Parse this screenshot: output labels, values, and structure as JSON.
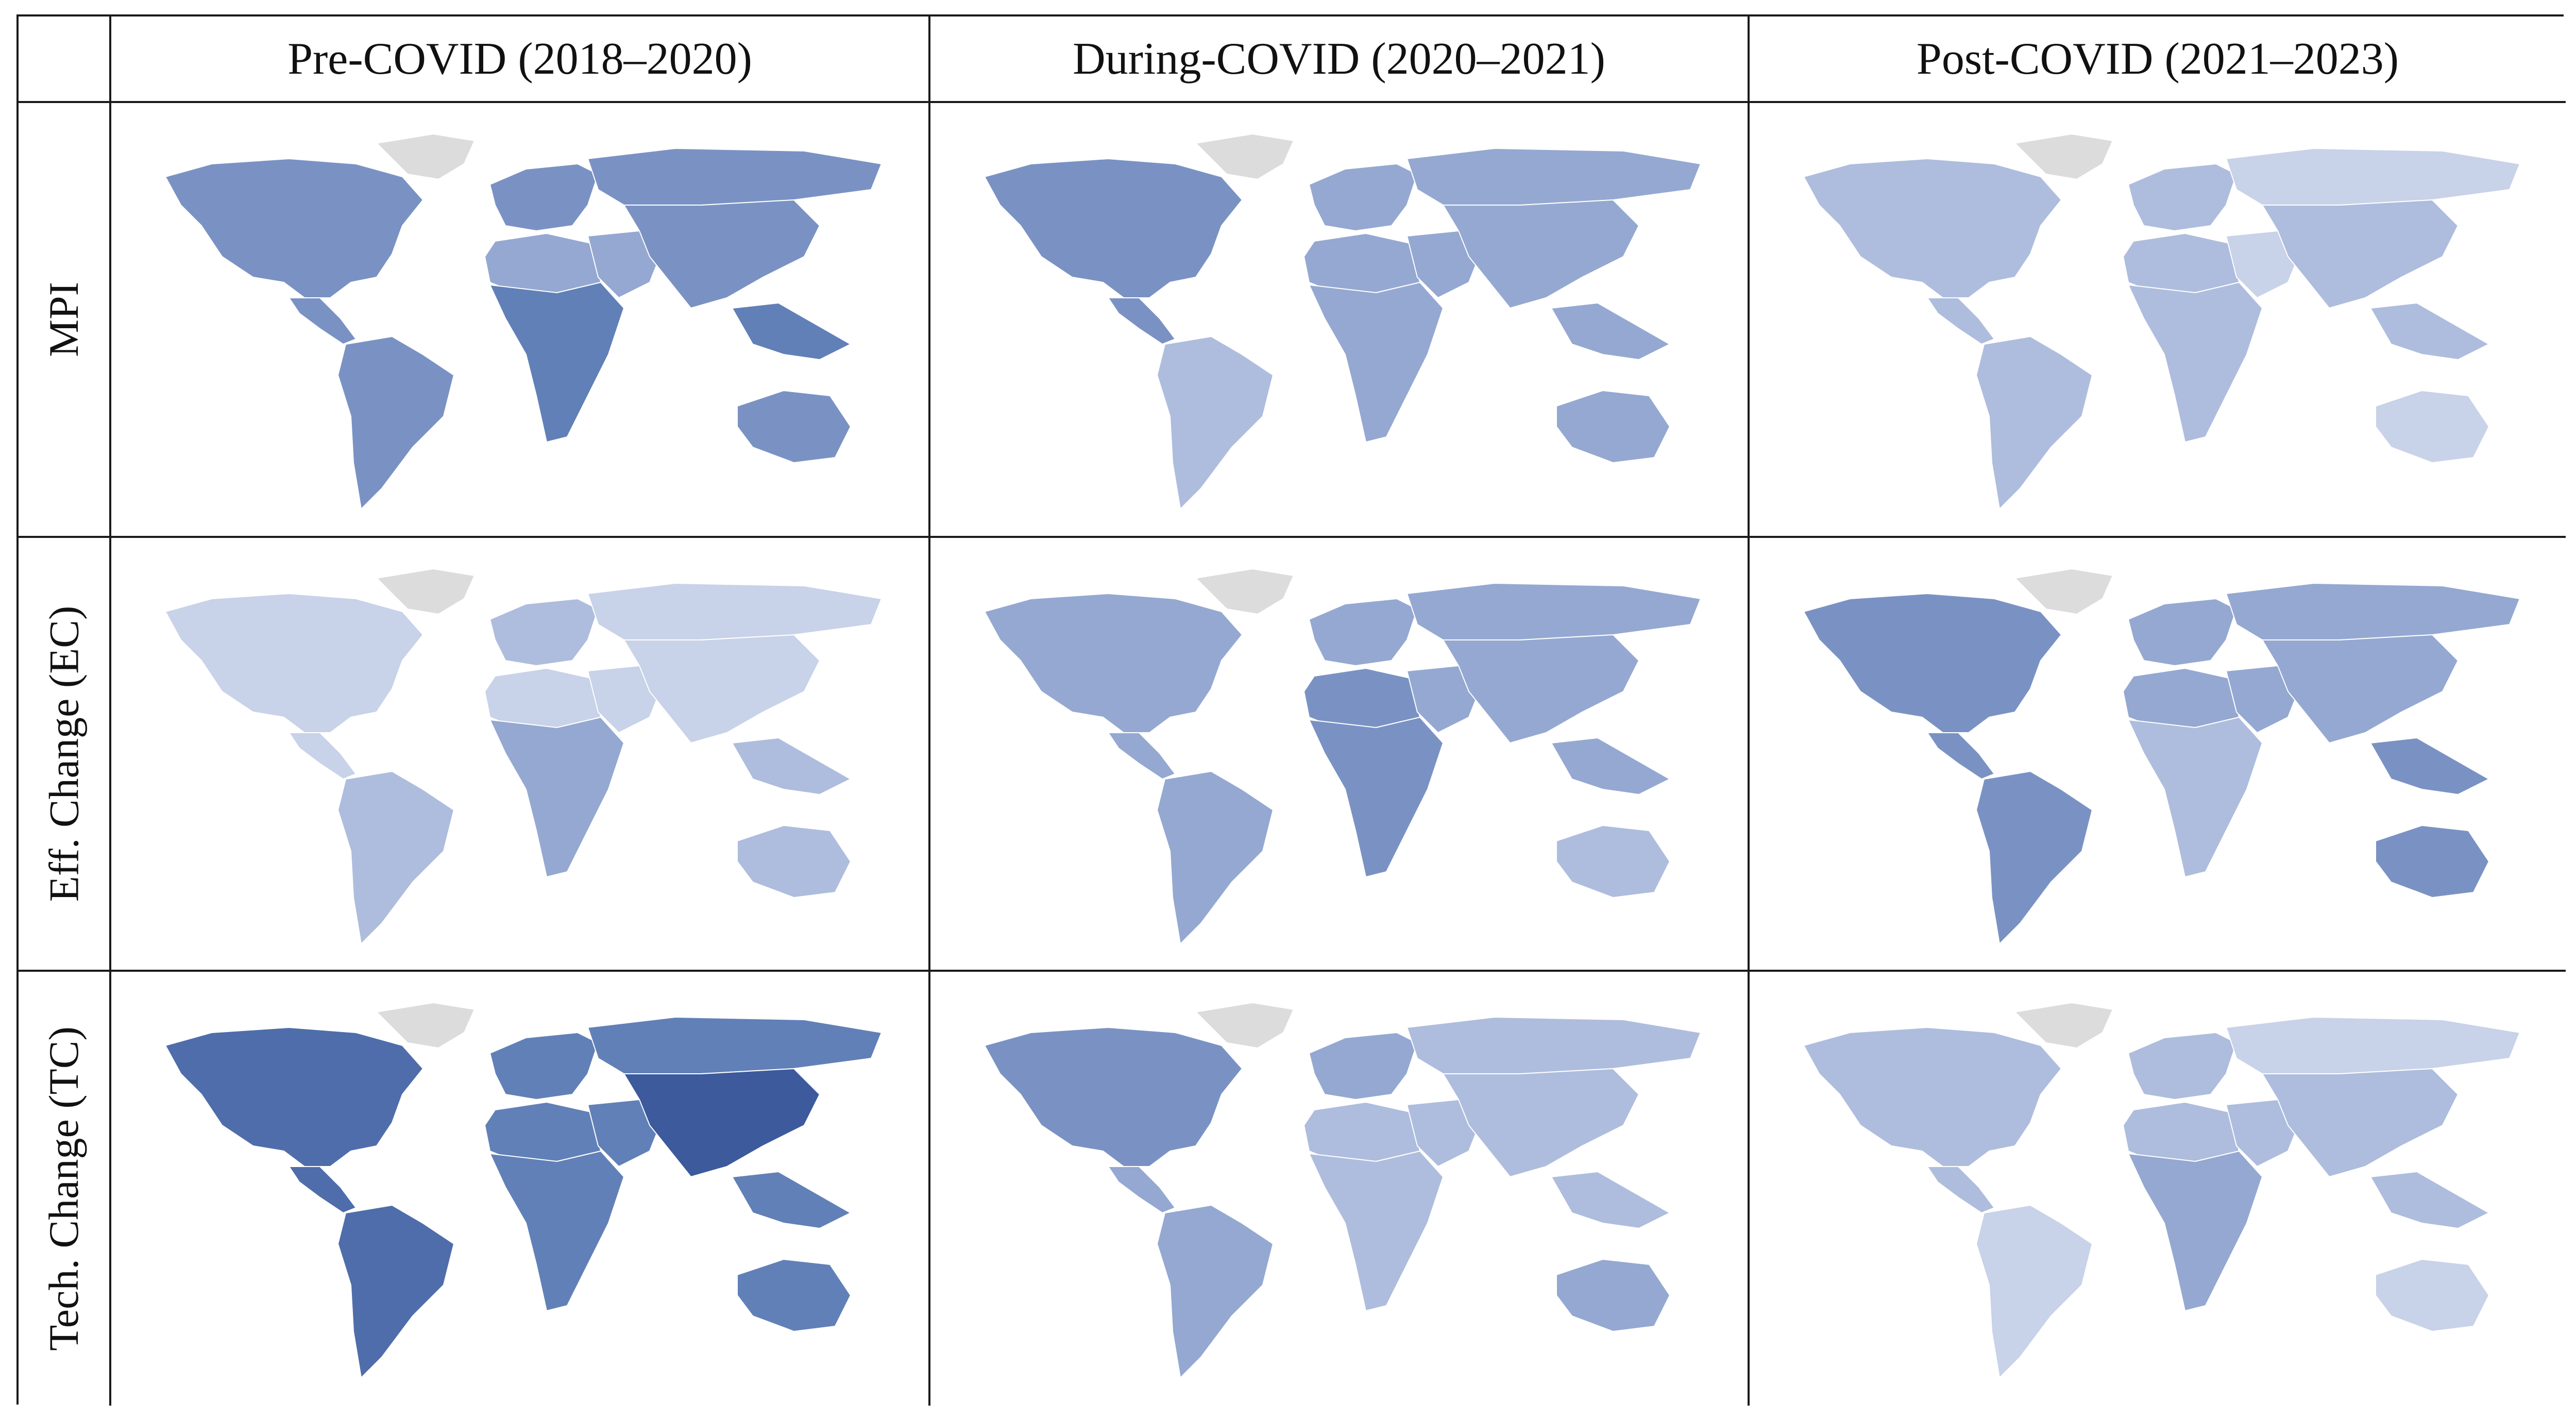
{
  "table": {
    "columns": [
      "Pre-COVID (2018–2020)",
      "During-COVID (2020–2021)",
      "Post-COVID (2021–2023)"
    ],
    "rows": [
      "MPI",
      "Eff. Change (EC)",
      "Tech. Change (TC)"
    ]
  },
  "legend": {
    "no_data_color": "#dcdcdc",
    "scale": [
      "#dfe5f1",
      "#c8d2e8",
      "#aebddd",
      "#94a8d1",
      "#7a92c3",
      "#6180b7",
      "#4f6daa",
      "#3c5a9c"
    ]
  },
  "maps": [
    [
      {
        "region": "MPI / Pre-COVID",
        "shades": {
          "north_america": 4,
          "greenland": -1,
          "central_america": 4,
          "south_america": 4,
          "europe": 4,
          "north_africa": 3,
          "sub_saharan_africa": 5,
          "middle_east": 3,
          "russia": 4,
          "asia": 4,
          "southeast_asia": 5,
          "australia": 4
        }
      },
      {
        "region": "MPI / During-COVID",
        "shades": {
          "north_america": 4,
          "greenland": -1,
          "central_america": 4,
          "south_america": 2,
          "europe": 3,
          "north_africa": 3,
          "sub_saharan_africa": 3,
          "middle_east": 3,
          "russia": 3,
          "asia": 3,
          "southeast_asia": 3,
          "australia": 3
        }
      },
      {
        "region": "MPI / Post-COVID",
        "shades": {
          "north_america": 2,
          "greenland": -1,
          "central_america": 2,
          "south_america": 2,
          "europe": 2,
          "north_africa": 2,
          "sub_saharan_africa": 2,
          "middle_east": 1,
          "russia": 1,
          "asia": 2,
          "southeast_asia": 2,
          "australia": 1
        }
      }
    ],
    [
      {
        "region": "EC / Pre-COVID",
        "shades": {
          "north_america": 1,
          "greenland": -1,
          "central_america": 1,
          "south_america": 2,
          "europe": 2,
          "north_africa": 1,
          "sub_saharan_africa": 3,
          "middle_east": 1,
          "russia": 1,
          "asia": 1,
          "southeast_asia": 2,
          "australia": 2
        }
      },
      {
        "region": "EC / During-COVID",
        "shades": {
          "north_america": 3,
          "greenland": -1,
          "central_america": 3,
          "south_america": 3,
          "europe": 3,
          "north_africa": 4,
          "sub_saharan_africa": 4,
          "middle_east": 3,
          "russia": 3,
          "asia": 3,
          "southeast_asia": 3,
          "australia": 2
        }
      },
      {
        "region": "EC / Post-COVID",
        "shades": {
          "north_america": 4,
          "greenland": -1,
          "central_america": 4,
          "south_america": 4,
          "europe": 3,
          "north_africa": 3,
          "sub_saharan_africa": 2,
          "middle_east": 3,
          "russia": 3,
          "asia": 3,
          "southeast_asia": 4,
          "australia": 4
        }
      }
    ],
    [
      {
        "region": "TC / Pre-COVID",
        "shades": {
          "north_america": 6,
          "greenland": -1,
          "central_america": 6,
          "south_america": 6,
          "europe": 5,
          "north_africa": 5,
          "sub_saharan_africa": 5,
          "middle_east": 5,
          "russia": 5,
          "asia": 7,
          "southeast_asia": 5,
          "australia": 5
        }
      },
      {
        "region": "TC / During-COVID",
        "shades": {
          "north_america": 4,
          "greenland": -1,
          "central_america": 3,
          "south_america": 3,
          "europe": 3,
          "north_africa": 2,
          "sub_saharan_africa": 2,
          "middle_east": 2,
          "russia": 2,
          "asia": 2,
          "southeast_asia": 2,
          "australia": 3
        }
      },
      {
        "region": "TC / Post-COVID",
        "shades": {
          "north_america": 2,
          "greenland": -1,
          "central_america": 2,
          "south_america": 1,
          "europe": 2,
          "north_africa": 2,
          "sub_saharan_africa": 3,
          "middle_east": 2,
          "russia": 1,
          "asia": 2,
          "southeast_asia": 2,
          "australia": 1
        }
      }
    ]
  ]
}
